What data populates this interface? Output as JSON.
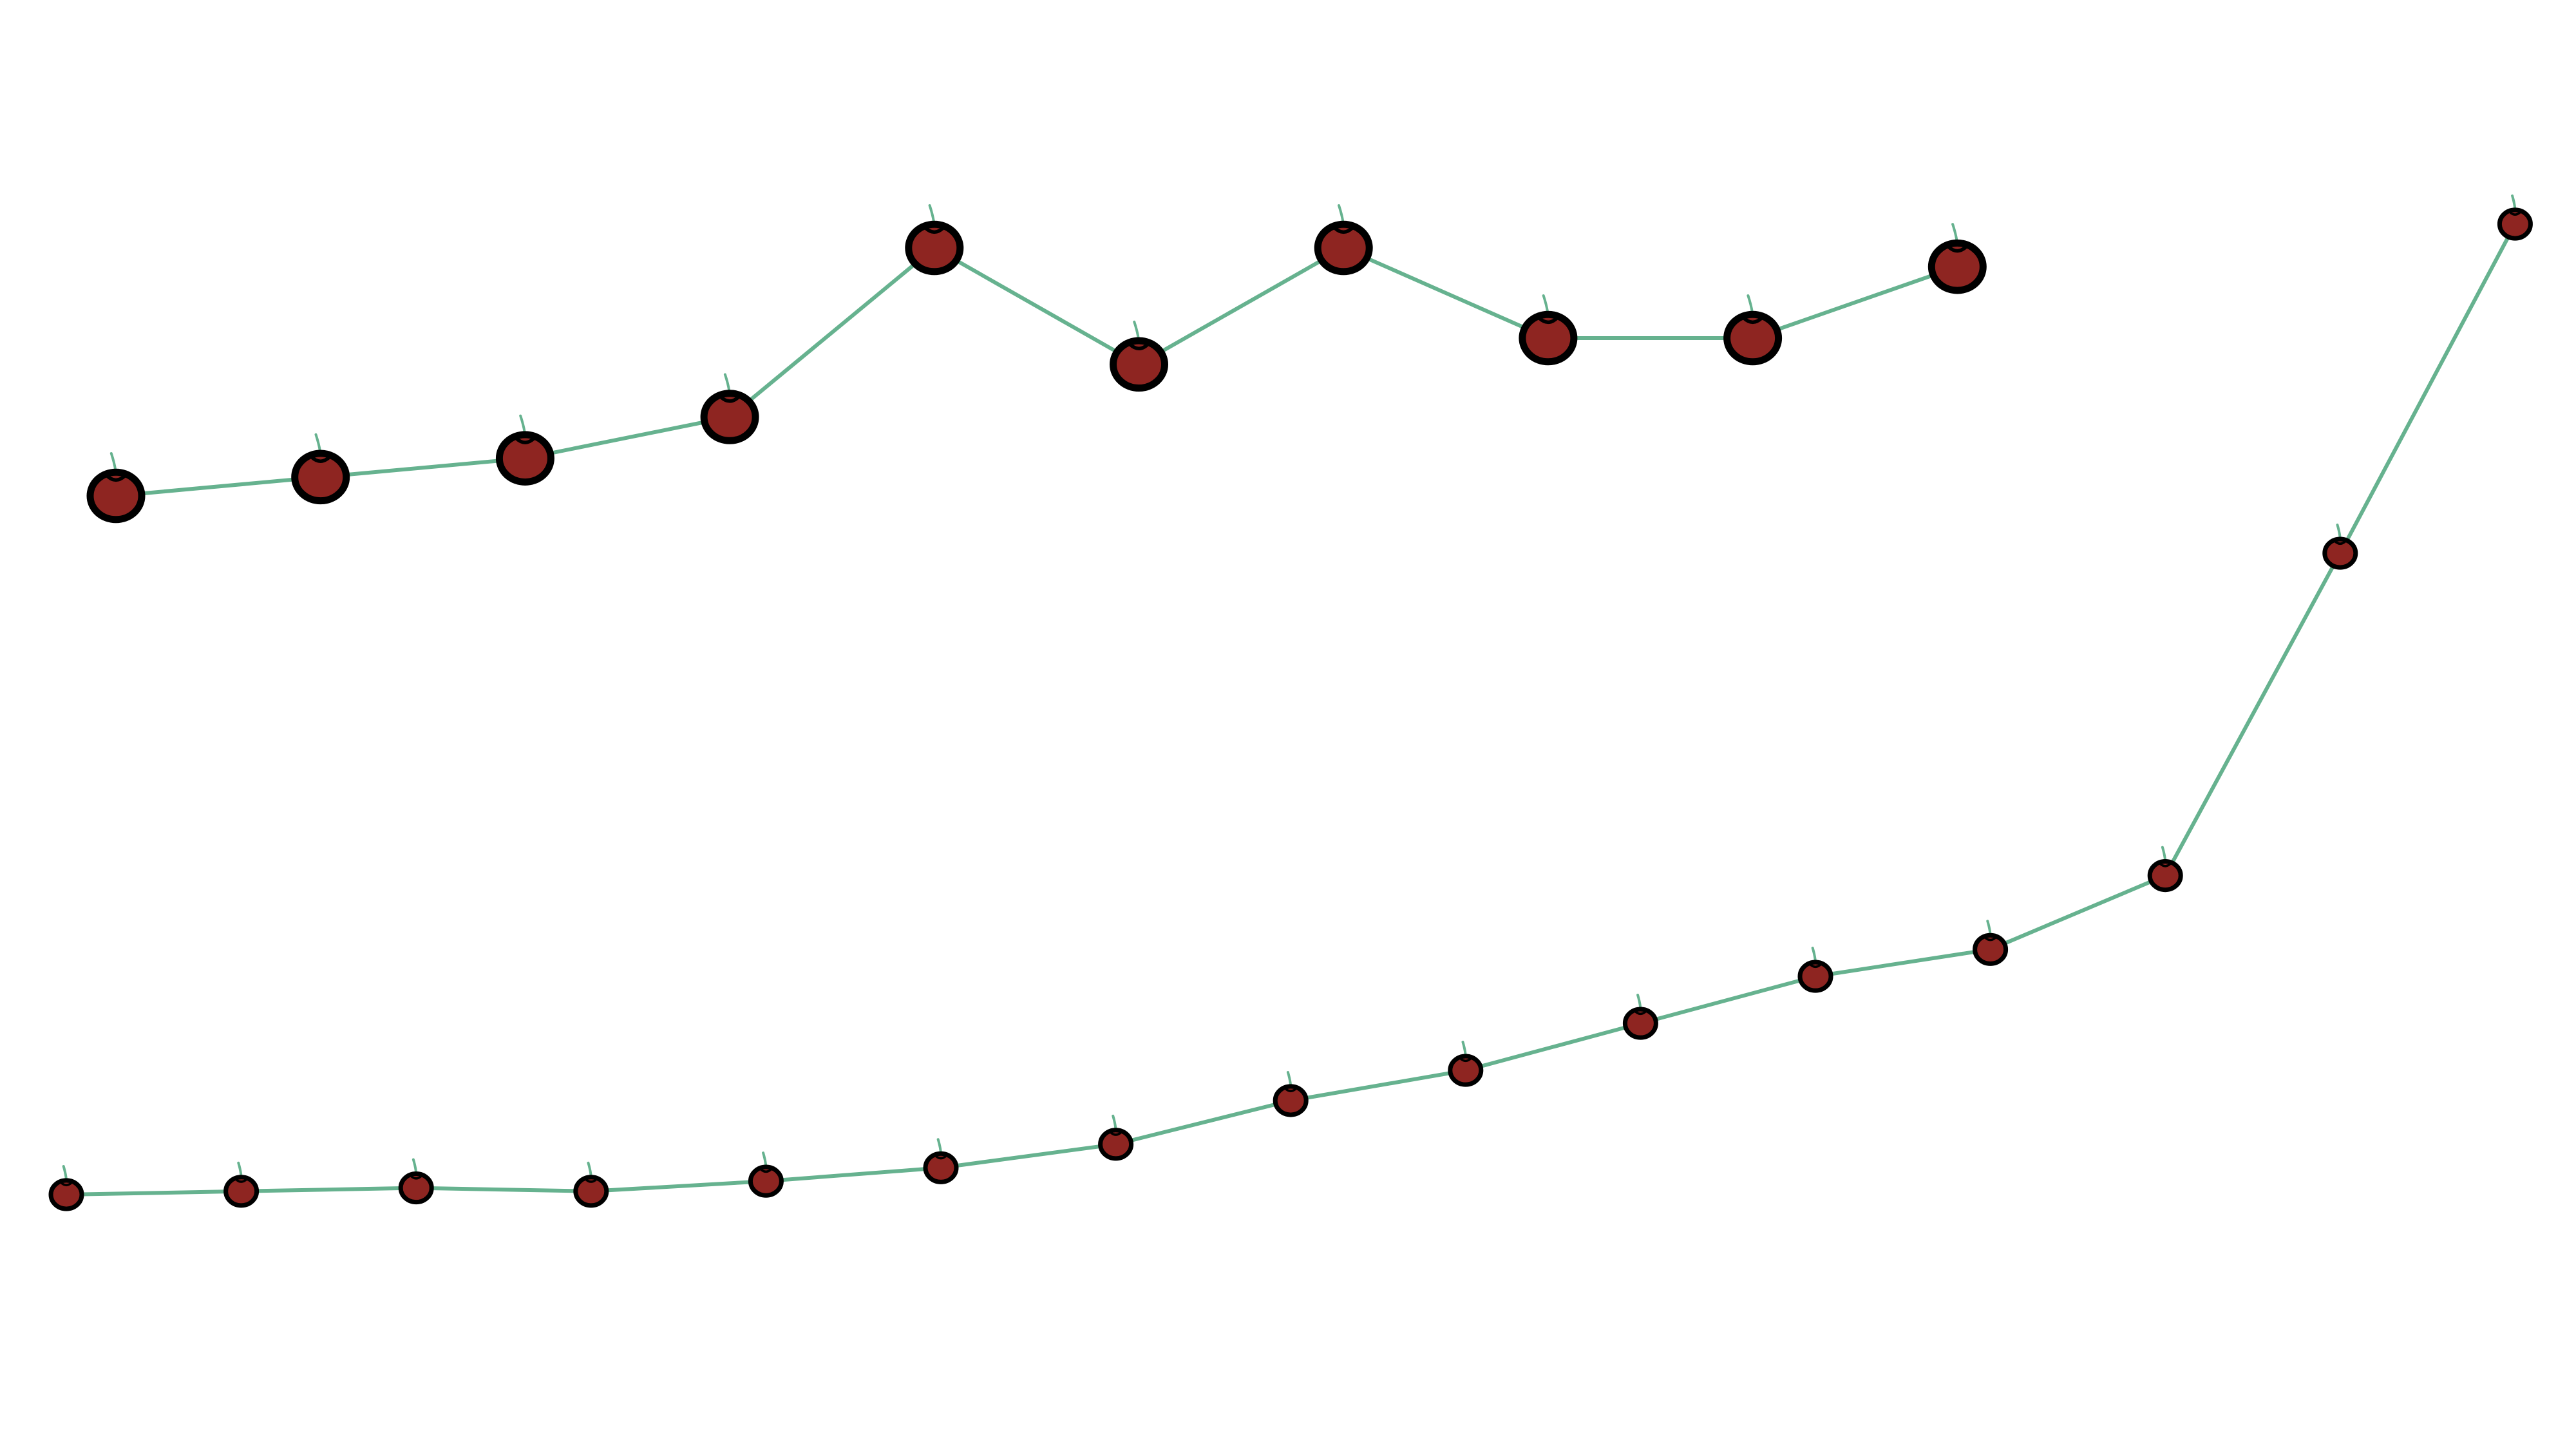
{
  "chart_data": [
    {
      "type": "line",
      "marker": "apple",
      "x": [
        1,
        2,
        3,
        4,
        5,
        6,
        7,
        8,
        9,
        10
      ],
      "series": [
        {
          "values": [
            2.6,
            3.1,
            3.6,
            4.7,
            9.2,
            6.1,
            9.2,
            6.8,
            6.8,
            8.7
          ]
        }
      ],
      "grid": false,
      "axes": false
    },
    {
      "type": "line",
      "marker": "apple",
      "x": [
        1,
        2,
        3,
        4,
        5,
        6,
        7,
        8,
        9,
        10,
        11,
        12,
        13,
        14,
        15
      ],
      "series": [
        {
          "values": [
            0.0,
            0.1,
            0.2,
            0.1,
            0.4,
            0.8,
            1.5,
            2.8,
            3.7,
            5.1,
            6.5,
            7.3,
            9.5,
            19.1,
            28.9
          ]
        }
      ],
      "grid": false,
      "axes": false
    }
  ],
  "colors": {
    "line": "#66b28f",
    "apple_fill": "#8e2521",
    "apple_outline": "#000000",
    "stem": "#66b28f",
    "background": "#ffffff"
  }
}
